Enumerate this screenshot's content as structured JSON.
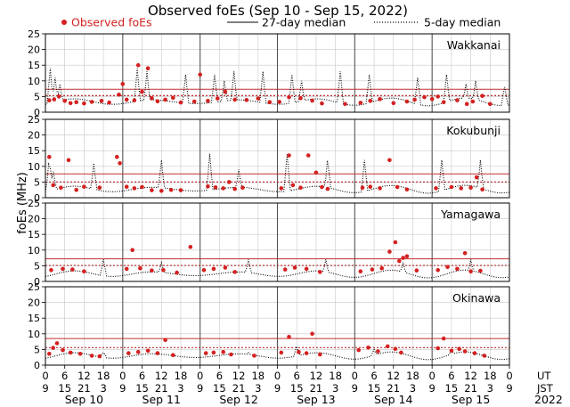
{
  "chart_data": {
    "type": "scatter",
    "title": "Observed foEs (Sep 10 - Sep 15, 2022)",
    "ylabel": "foEs (MHz)",
    "ylim": [
      0,
      25
    ],
    "yticks": [
      "0",
      "5",
      "10",
      "15",
      "20",
      "25"
    ],
    "legend": {
      "observed": "Observed foEs",
      "median27": "27-day median",
      "median5": "5-day median"
    },
    "colors": {
      "observed": "#d42020",
      "median27": "#c03030",
      "median5": "#000000",
      "divider": "#555555",
      "grid": "#c8c8c8"
    },
    "days": [
      "Sep 10",
      "Sep 11",
      "Sep 12",
      "Sep 13",
      "Sep 14",
      "Sep 15"
    ],
    "ut_ticks": [
      "0",
      "6",
      "12",
      "18",
      "0",
      "6",
      "12",
      "18",
      "0",
      "6",
      "12",
      "18",
      "0",
      "6",
      "12",
      "18",
      "0",
      "6",
      "12",
      "18",
      "0",
      "6",
      "12",
      "18",
      "0"
    ],
    "jst_ticks": [
      "9",
      "15",
      "21",
      "3",
      "9",
      "15",
      "21",
      "3",
      "9",
      "15",
      "21",
      "3",
      "9",
      "15",
      "21",
      "3",
      "9",
      "15",
      "21",
      "3",
      "9",
      "15",
      "21",
      "3",
      "9"
    ],
    "ut_label": "UT",
    "jst_label": "JST",
    "year_label": "2022",
    "panels": [
      {
        "name": "Wakkanai",
        "median27": 7.3,
        "median5": 5.3,
        "baseline": 3.3,
        "spikes": [
          [
            0.25,
            14
          ],
          [
            0.5,
            11
          ],
          [
            0.75,
            9
          ],
          [
            4.75,
            14
          ],
          [
            5.25,
            13
          ],
          [
            7.25,
            12
          ],
          [
            8.75,
            12
          ],
          [
            9.25,
            10
          ],
          [
            9.75,
            13
          ],
          [
            11.25,
            13
          ],
          [
            12.75,
            12
          ],
          [
            13.25,
            10
          ],
          [
            15.25,
            13
          ],
          [
            16.75,
            12
          ],
          [
            19.25,
            11
          ],
          [
            20.75,
            12
          ],
          [
            21.75,
            9
          ],
          [
            22.25,
            10
          ],
          [
            23.75,
            8
          ]
        ],
        "observed": [
          [
            0.2,
            3.8
          ],
          [
            0.45,
            4.1
          ],
          [
            0.7,
            5.0
          ],
          [
            1.0,
            3.6
          ],
          [
            1.3,
            2.9
          ],
          [
            1.6,
            3.2
          ],
          [
            2.0,
            2.8
          ],
          [
            2.4,
            3.3
          ],
          [
            2.9,
            3.6
          ],
          [
            3.3,
            3.1
          ],
          [
            3.8,
            5.6
          ],
          [
            4.0,
            9.0
          ],
          [
            4.2,
            4.0
          ],
          [
            4.6,
            3.8
          ],
          [
            4.8,
            15.0
          ],
          [
            5.0,
            6.5
          ],
          [
            5.3,
            14.0
          ],
          [
            5.5,
            4.5
          ],
          [
            5.8,
            3.5
          ],
          [
            6.2,
            4.0
          ],
          [
            6.6,
            4.6
          ],
          [
            7.0,
            3.1
          ],
          [
            7.7,
            3.4
          ],
          [
            8.0,
            12.0
          ],
          [
            8.4,
            3.6
          ],
          [
            8.9,
            4.4
          ],
          [
            9.3,
            6.5
          ],
          [
            9.8,
            4.0
          ],
          [
            10.4,
            3.9
          ],
          [
            11.0,
            4.4
          ],
          [
            11.6,
            3.2
          ],
          [
            12.1,
            3.3
          ],
          [
            12.6,
            4.8
          ],
          [
            13.2,
            4.5
          ],
          [
            13.8,
            3.7
          ],
          [
            14.3,
            2.8
          ],
          [
            15.5,
            2.6
          ],
          [
            16.3,
            3.0
          ],
          [
            16.8,
            3.6
          ],
          [
            17.3,
            4.2
          ],
          [
            18.0,
            2.9
          ],
          [
            18.7,
            3.4
          ],
          [
            19.1,
            4.0
          ],
          [
            19.6,
            4.8
          ],
          [
            20.0,
            4.2
          ],
          [
            20.3,
            5.0
          ],
          [
            20.6,
            3.2
          ],
          [
            21.3,
            3.8
          ],
          [
            21.8,
            2.6
          ],
          [
            22.1,
            3.4
          ],
          [
            22.6,
            5.2
          ],
          [
            23.0,
            2.6
          ]
        ]
      },
      {
        "name": "Kokubunji",
        "median27": 7.6,
        "median5": 5.0,
        "baseline": 2.7,
        "spikes": [
          [
            0.2,
            13
          ],
          [
            0.4,
            9
          ],
          [
            2.5,
            11
          ],
          [
            6.0,
            12
          ],
          [
            8.5,
            14
          ],
          [
            10.0,
            9
          ],
          [
            12.5,
            14
          ],
          [
            14.6,
            13
          ],
          [
            16.5,
            12
          ],
          [
            20.5,
            12
          ],
          [
            22.5,
            12
          ]
        ],
        "observed": [
          [
            0.2,
            13.0
          ],
          [
            0.4,
            4.0
          ],
          [
            0.8,
            3.2
          ],
          [
            1.2,
            12.0
          ],
          [
            1.6,
            2.5
          ],
          [
            2.0,
            3.5
          ],
          [
            2.8,
            3.2
          ],
          [
            3.7,
            13.0
          ],
          [
            3.85,
            11.0
          ],
          [
            4.2,
            3.5
          ],
          [
            4.6,
            3.0
          ],
          [
            5.0,
            3.4
          ],
          [
            5.5,
            2.4
          ],
          [
            6.0,
            2.2
          ],
          [
            6.5,
            2.5
          ],
          [
            7.0,
            2.4
          ],
          [
            8.4,
            3.6
          ],
          [
            8.8,
            3.3
          ],
          [
            9.2,
            3.0
          ],
          [
            9.5,
            5.0
          ],
          [
            9.8,
            2.8
          ],
          [
            10.2,
            3.2
          ],
          [
            12.2,
            3.0
          ],
          [
            12.6,
            13.5
          ],
          [
            12.8,
            4.0
          ],
          [
            13.2,
            3.2
          ],
          [
            13.6,
            13.5
          ],
          [
            14.0,
            8.0
          ],
          [
            14.6,
            2.8
          ],
          [
            14.3,
            3.4
          ],
          [
            16.4,
            3.2
          ],
          [
            16.8,
            3.5
          ],
          [
            17.3,
            3.0
          ],
          [
            17.8,
            12.0
          ],
          [
            18.2,
            3.4
          ],
          [
            18.7,
            2.6
          ],
          [
            20.2,
            3.0
          ],
          [
            21.0,
            3.4
          ],
          [
            21.5,
            3.0
          ],
          [
            22.0,
            3.2
          ],
          [
            22.3,
            6.5
          ],
          [
            22.6,
            2.6
          ]
        ]
      },
      {
        "name": "Yamagawa",
        "median27": 7.2,
        "median5": 5.1,
        "baseline": 2.4,
        "spikes": [
          [
            3.0,
            7
          ],
          [
            6.0,
            6
          ],
          [
            10.5,
            7
          ],
          [
            14.5,
            7
          ],
          [
            18.5,
            6
          ],
          [
            22.0,
            7
          ]
        ],
        "observed": [
          [
            0.3,
            3.6
          ],
          [
            0.9,
            4.0
          ],
          [
            1.4,
            3.8
          ],
          [
            2.0,
            3.2
          ],
          [
            4.2,
            4.0
          ],
          [
            4.5,
            10.0
          ],
          [
            4.9,
            4.2
          ],
          [
            5.5,
            3.5
          ],
          [
            6.1,
            3.6
          ],
          [
            6.8,
            2.8
          ],
          [
            7.5,
            11.0
          ],
          [
            8.2,
            3.6
          ],
          [
            8.7,
            4.0
          ],
          [
            9.3,
            4.4
          ],
          [
            9.8,
            3.0
          ],
          [
            12.4,
            3.8
          ],
          [
            12.9,
            4.4
          ],
          [
            13.5,
            4.0
          ],
          [
            14.2,
            3.0
          ],
          [
            16.3,
            3.2
          ],
          [
            16.9,
            3.8
          ],
          [
            17.4,
            4.2
          ],
          [
            17.8,
            9.5
          ],
          [
            18.1,
            12.5
          ],
          [
            18.3,
            6.5
          ],
          [
            18.5,
            7.5
          ],
          [
            18.7,
            8.0
          ],
          [
            19.2,
            3.5
          ],
          [
            20.3,
            3.6
          ],
          [
            20.8,
            4.6
          ],
          [
            21.3,
            4.0
          ],
          [
            21.7,
            9.0
          ],
          [
            22.0,
            3.2
          ],
          [
            22.5,
            3.4
          ]
        ]
      },
      {
        "name": "Okinawa",
        "median27": 8.5,
        "median5": 5.6,
        "baseline": 3.0,
        "spikes": [
          [
            3.0,
            4
          ],
          [
            10.5,
            4
          ],
          [
            13.0,
            6
          ],
          [
            17.0,
            5
          ],
          [
            21.0,
            5
          ]
        ],
        "observed": [
          [
            0.2,
            3.6
          ],
          [
            0.4,
            5.5
          ],
          [
            0.6,
            7.0
          ],
          [
            0.9,
            4.8
          ],
          [
            1.3,
            4.0
          ],
          [
            1.8,
            3.6
          ],
          [
            2.4,
            3.0
          ],
          [
            2.8,
            2.8
          ],
          [
            4.3,
            3.8
          ],
          [
            4.8,
            4.2
          ],
          [
            5.3,
            4.6
          ],
          [
            5.8,
            3.8
          ],
          [
            6.2,
            8.0
          ],
          [
            6.6,
            3.2
          ],
          [
            8.3,
            3.8
          ],
          [
            8.7,
            4.0
          ],
          [
            9.2,
            4.2
          ],
          [
            9.6,
            3.4
          ],
          [
            10.8,
            3.0
          ],
          [
            12.2,
            4.0
          ],
          [
            12.6,
            9.0
          ],
          [
            13.1,
            4.2
          ],
          [
            13.5,
            3.8
          ],
          [
            13.8,
            10.0
          ],
          [
            14.2,
            3.4
          ],
          [
            16.2,
            4.8
          ],
          [
            16.7,
            5.6
          ],
          [
            17.2,
            4.4
          ],
          [
            17.7,
            6.0
          ],
          [
            18.1,
            5.2
          ],
          [
            18.4,
            4.0
          ],
          [
            20.3,
            5.4
          ],
          [
            20.6,
            8.5
          ],
          [
            21.0,
            4.6
          ],
          [
            21.4,
            5.2
          ],
          [
            21.7,
            4.4
          ],
          [
            22.2,
            3.8
          ],
          [
            22.7,
            3.0
          ]
        ]
      }
    ]
  }
}
